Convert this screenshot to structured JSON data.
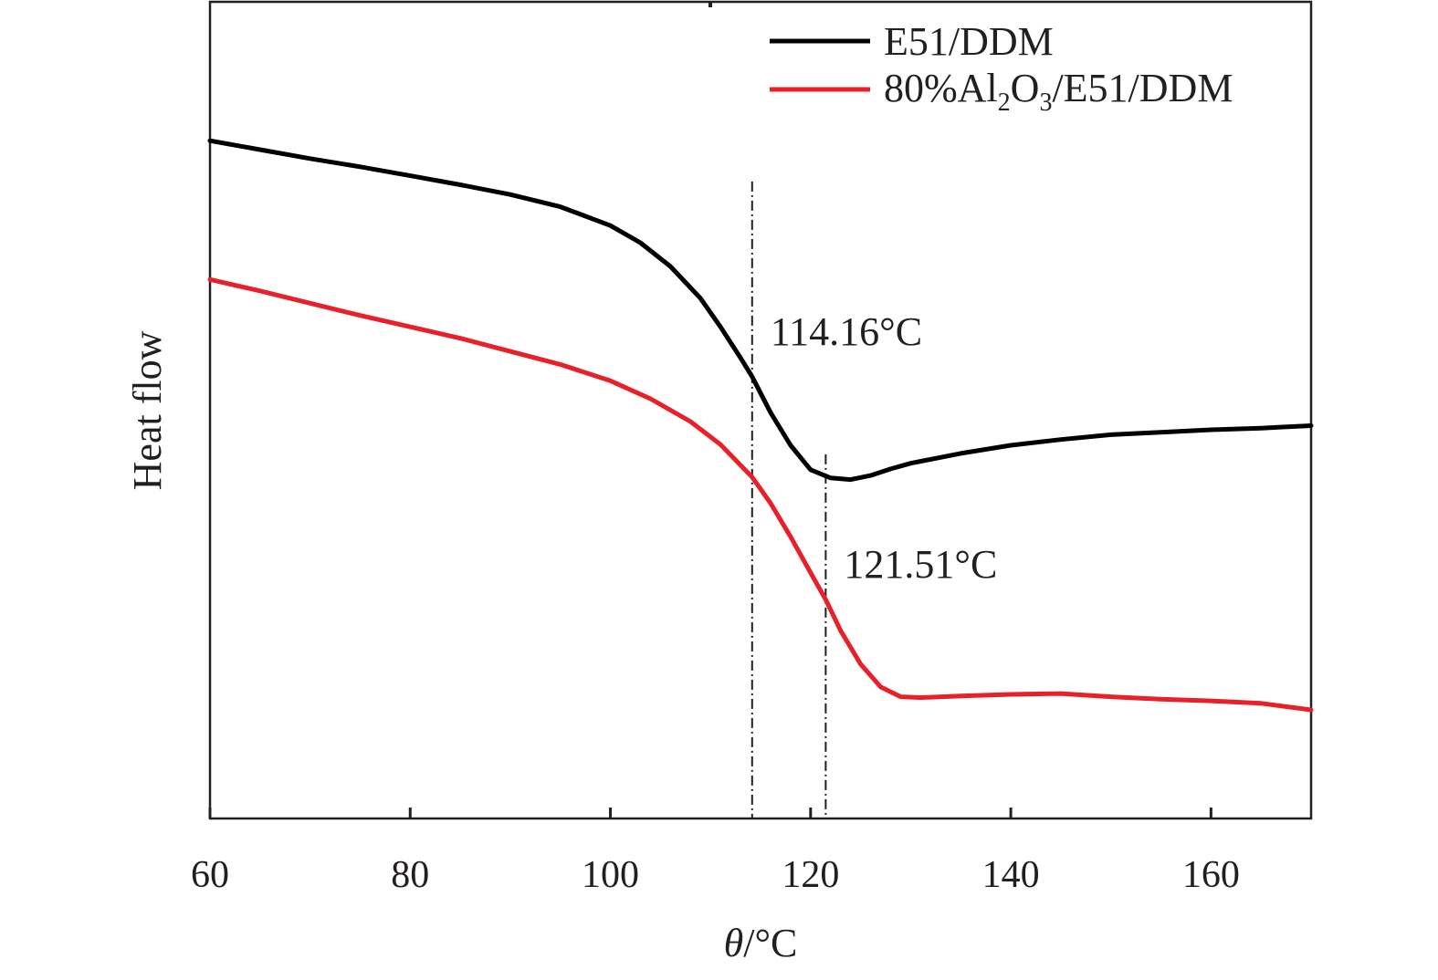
{
  "chart_data": {
    "type": "line",
    "title": "",
    "xlabel_italic": "θ",
    "xlabel_rest": "/°C",
    "ylabel": "Heat flow",
    "xlim": [
      60,
      170
    ],
    "ylim": [
      0,
      100
    ],
    "y_ticks_shown": false,
    "x_ticks": [
      60,
      80,
      100,
      120,
      140,
      160
    ],
    "x_tick_labels": [
      "60",
      "80",
      "100",
      "120",
      "140",
      "160"
    ],
    "legend": {
      "position": "top-right",
      "entry1": {
        "name": "E51/DDM",
        "color": "#000000"
      },
      "entry2": {
        "parts": [
          "80%Al",
          "2",
          "O",
          "3",
          "/E51/DDM"
        ],
        "color": "#e8202a"
      }
    },
    "series": [
      {
        "name": "E51/DDM",
        "color": "#000000",
        "x": [
          60,
          65,
          70,
          75,
          80,
          85,
          90,
          95,
          100,
          103,
          106,
          109,
          111,
          113,
          114.16,
          116,
          118,
          120,
          122,
          124,
          126,
          128,
          130,
          135,
          140,
          145,
          150,
          155,
          160,
          165,
          170
        ],
        "y": [
          83.0,
          81.9,
          80.8,
          79.8,
          78.7,
          77.6,
          76.4,
          74.9,
          72.6,
          70.5,
          67.6,
          63.7,
          60.2,
          56.4,
          54.1,
          49.7,
          45.7,
          42.7,
          41.7,
          41.5,
          42.0,
          42.8,
          43.5,
          44.7,
          45.7,
          46.4,
          47.0,
          47.3,
          47.6,
          47.8,
          48.1
        ]
      },
      {
        "name": "80%Al2O3/E51/DDM",
        "color": "#e8202a",
        "x": [
          60,
          65,
          70,
          75,
          80,
          85,
          90,
          95,
          100,
          104,
          108,
          111,
          114.16,
          116,
          118,
          120,
          121.51,
          123,
          125,
          127,
          129,
          131,
          135,
          140,
          145,
          150,
          155,
          160,
          165,
          170
        ],
        "y": [
          66.0,
          64.6,
          63.1,
          61.6,
          60.2,
          58.8,
          57.2,
          55.6,
          53.6,
          51.4,
          48.6,
          45.8,
          41.8,
          38.6,
          34.5,
          30.1,
          26.8,
          23.0,
          18.9,
          16.1,
          14.9,
          14.8,
          15.0,
          15.2,
          15.3,
          14.9,
          14.6,
          14.4,
          14.1,
          13.3
        ]
      }
    ],
    "annotations": [
      {
        "x": 114.16,
        "label": "114.16°C",
        "line_top_y": 78,
        "label_y": 58
      },
      {
        "x": 121.51,
        "label": "121.51°C",
        "line_top_y": 44.6,
        "label_y": 29.5
      }
    ]
  }
}
